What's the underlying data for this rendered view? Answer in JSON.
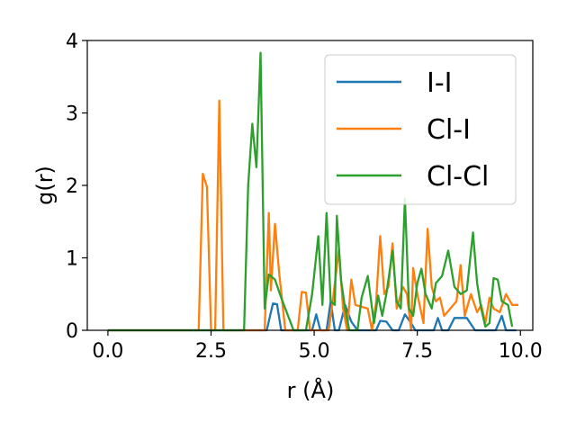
{
  "chart_data": {
    "type": "line",
    "xlabel": "r (Å)",
    "ylabel": "g(r)",
    "xlim": [
      -0.5,
      10.3
    ],
    "ylim": [
      0,
      4
    ],
    "x_ticks": [
      {
        "value": 0.0,
        "label": "0.0"
      },
      {
        "value": 2.5,
        "label": "2.5"
      },
      {
        "value": 5.0,
        "label": "5.0"
      },
      {
        "value": 7.5,
        "label": "7.5"
      },
      {
        "value": 10.0,
        "label": "10.0"
      }
    ],
    "y_ticks": [
      {
        "value": 0,
        "label": "0"
      },
      {
        "value": 1,
        "label": "1"
      },
      {
        "value": 2,
        "label": "2"
      },
      {
        "value": 3,
        "label": "3"
      },
      {
        "value": 4,
        "label": "4"
      }
    ],
    "grid": false,
    "legend_position": "top-right",
    "series": [
      {
        "name": "I-I",
        "color": "#1f77b4",
        "points": [
          [
            0,
            0
          ],
          [
            3.85,
            0
          ],
          [
            4.0,
            0.37
          ],
          [
            4.1,
            0.36
          ],
          [
            4.2,
            0
          ],
          [
            4.95,
            0
          ],
          [
            5.05,
            0.22
          ],
          [
            5.15,
            0
          ],
          [
            5.3,
            0
          ],
          [
            5.4,
            0.4
          ],
          [
            5.5,
            0
          ],
          [
            5.6,
            0
          ],
          [
            5.75,
            0.35
          ],
          [
            5.9,
            0.12
          ],
          [
            6.05,
            0
          ],
          [
            6.5,
            0
          ],
          [
            6.6,
            0.13
          ],
          [
            6.75,
            0.12
          ],
          [
            6.9,
            0
          ],
          [
            7.05,
            0
          ],
          [
            7.2,
            0.22
          ],
          [
            7.35,
            0.1
          ],
          [
            7.45,
            0
          ],
          [
            7.9,
            0
          ],
          [
            8.0,
            0.17
          ],
          [
            8.1,
            0
          ],
          [
            8.25,
            0
          ],
          [
            8.4,
            0.17
          ],
          [
            8.7,
            0.17
          ],
          [
            8.9,
            0
          ],
          [
            9.4,
            0
          ],
          [
            9.55,
            0.2
          ],
          [
            9.65,
            0
          ],
          [
            9.9,
            0
          ]
        ]
      },
      {
        "name": "Cl-I",
        "color": "#ff7f0e",
        "points": [
          [
            0,
            0
          ],
          [
            2.2,
            0
          ],
          [
            2.3,
            2.16
          ],
          [
            2.4,
            1.98
          ],
          [
            2.5,
            0
          ],
          [
            2.6,
            0
          ],
          [
            2.7,
            3.17
          ],
          [
            2.8,
            0
          ],
          [
            3.8,
            0
          ],
          [
            3.9,
            1.62
          ],
          [
            3.95,
            0.55
          ],
          [
            4.05,
            1.47
          ],
          [
            4.15,
            0.8
          ],
          [
            4.3,
            0
          ],
          [
            4.6,
            0
          ],
          [
            4.7,
            0.53
          ],
          [
            4.8,
            0.52
          ],
          [
            4.9,
            0
          ],
          [
            5.35,
            0
          ],
          [
            5.45,
            0.4
          ],
          [
            5.6,
            1.12
          ],
          [
            5.7,
            0.3
          ],
          [
            5.8,
            0
          ],
          [
            5.9,
            0.7
          ],
          [
            6.0,
            0.35
          ],
          [
            6.3,
            0.3
          ],
          [
            6.4,
            0
          ],
          [
            6.5,
            0.38
          ],
          [
            6.6,
            1.3
          ],
          [
            6.7,
            0.5
          ],
          [
            6.8,
            0.6
          ],
          [
            6.9,
            1.2
          ],
          [
            7.0,
            0.3
          ],
          [
            7.15,
            0.6
          ],
          [
            7.25,
            0.5
          ],
          [
            7.35,
            0
          ],
          [
            7.4,
            0.86
          ],
          [
            7.5,
            0.5
          ],
          [
            7.65,
            0.1
          ],
          [
            7.75,
            1.4
          ],
          [
            7.85,
            0.6
          ],
          [
            7.95,
            0.4
          ],
          [
            8.05,
            0.45
          ],
          [
            8.15,
            0.2
          ],
          [
            8.3,
            0.3
          ],
          [
            8.45,
            0.4
          ],
          [
            8.55,
            0.9
          ],
          [
            8.65,
            0.2
          ],
          [
            8.8,
            0.5
          ],
          [
            8.95,
            0.25
          ],
          [
            9.05,
            0.35
          ],
          [
            9.15,
            0.1
          ],
          [
            9.25,
            0.45
          ],
          [
            9.35,
            0.3
          ],
          [
            9.5,
            0.25
          ],
          [
            9.65,
            0.5
          ],
          [
            9.8,
            0.35
          ],
          [
            9.95,
            0.35
          ]
        ]
      },
      {
        "name": "Cl-Cl",
        "color": "#2ca02c",
        "points": [
          [
            0,
            0
          ],
          [
            3.3,
            0
          ],
          [
            3.4,
            2.0
          ],
          [
            3.5,
            2.85
          ],
          [
            3.6,
            2.25
          ],
          [
            3.7,
            3.83
          ],
          [
            3.8,
            0.3
          ],
          [
            3.9,
            0.77
          ],
          [
            4.05,
            0.7
          ],
          [
            4.2,
            0.45
          ],
          [
            4.5,
            0
          ],
          [
            4.8,
            0
          ],
          [
            4.95,
            0.5
          ],
          [
            5.1,
            1.3
          ],
          [
            5.2,
            0.35
          ],
          [
            5.3,
            1.62
          ],
          [
            5.4,
            0.4
          ],
          [
            5.5,
            0.35
          ],
          [
            5.55,
            1.58
          ],
          [
            5.65,
            0.7
          ],
          [
            5.75,
            0.3
          ],
          [
            5.85,
            0
          ],
          [
            6.05,
            0
          ],
          [
            6.15,
            0.45
          ],
          [
            6.3,
            0.75
          ],
          [
            6.45,
            0.1
          ],
          [
            6.55,
            0.48
          ],
          [
            6.65,
            0.2
          ],
          [
            6.75,
            0.5
          ],
          [
            6.9,
            1.1
          ],
          [
            7.0,
            0.4
          ],
          [
            7.1,
            0.3
          ],
          [
            7.2,
            1.82
          ],
          [
            7.3,
            0.3
          ],
          [
            7.4,
            0.2
          ],
          [
            7.5,
            0.65
          ],
          [
            7.6,
            0.85
          ],
          [
            7.7,
            0.5
          ],
          [
            7.85,
            0.3
          ],
          [
            7.95,
            0.65
          ],
          [
            8.1,
            0.75
          ],
          [
            8.25,
            1.1
          ],
          [
            8.4,
            0.6
          ],
          [
            8.55,
            0.5
          ],
          [
            8.7,
            0.55
          ],
          [
            8.85,
            1.35
          ],
          [
            8.95,
            0.65
          ],
          [
            9.05,
            0.3
          ],
          [
            9.15,
            0.05
          ],
          [
            9.25,
            0.1
          ],
          [
            9.35,
            0.72
          ],
          [
            9.45,
            0.7
          ],
          [
            9.55,
            0.4
          ],
          [
            9.7,
            0.35
          ],
          [
            9.8,
            0.05
          ]
        ]
      }
    ]
  }
}
